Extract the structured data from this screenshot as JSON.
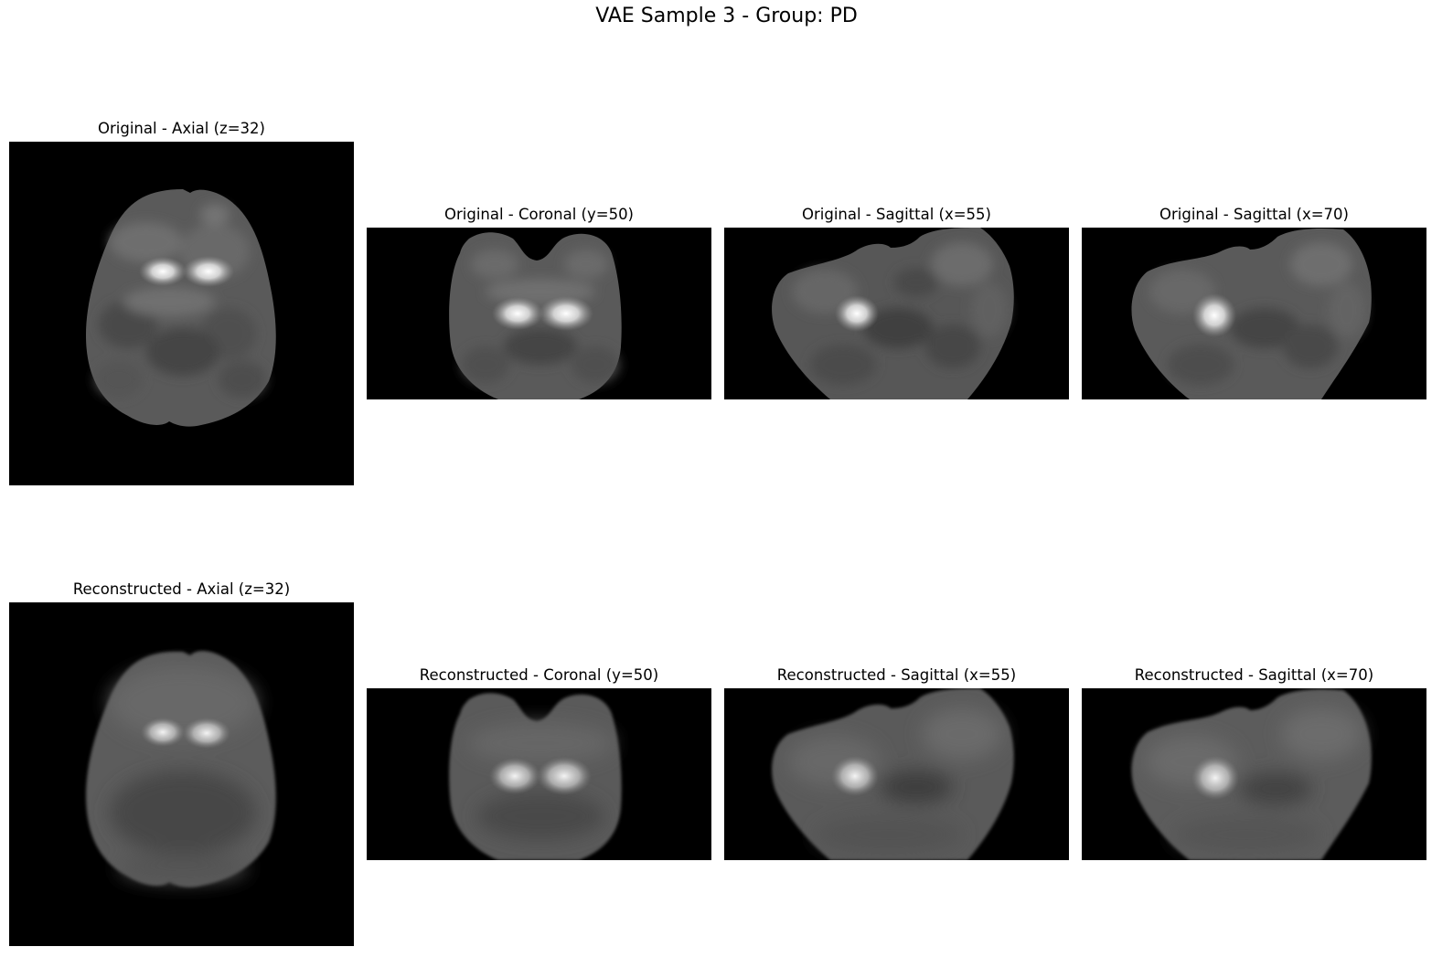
{
  "figure": {
    "title": "VAE Sample 3 - Group: PD"
  },
  "rows": [
    {
      "name": "Original",
      "panels": [
        {
          "title": "Original - Axial (z=32)",
          "view": "axial"
        },
        {
          "title": "Original - Coronal (y=50)",
          "view": "coronal"
        },
        {
          "title": "Original - Sagittal (x=55)",
          "view": "sagittal"
        },
        {
          "title": "Original - Sagittal (x=70)",
          "view": "sagittal"
        }
      ]
    },
    {
      "name": "Reconstructed",
      "panels": [
        {
          "title": "Reconstructed - Axial (z=32)",
          "view": "axial"
        },
        {
          "title": "Reconstructed - Coronal (y=50)",
          "view": "coronal"
        },
        {
          "title": "Reconstructed - Sagittal (x=55)",
          "view": "sagittal"
        },
        {
          "title": "Reconstructed - Sagittal (x=70)",
          "view": "sagittal"
        }
      ]
    }
  ],
  "colors": {
    "background": "#000000",
    "tissue": "#6b6b6b",
    "hotspot": "#ffffff"
  }
}
